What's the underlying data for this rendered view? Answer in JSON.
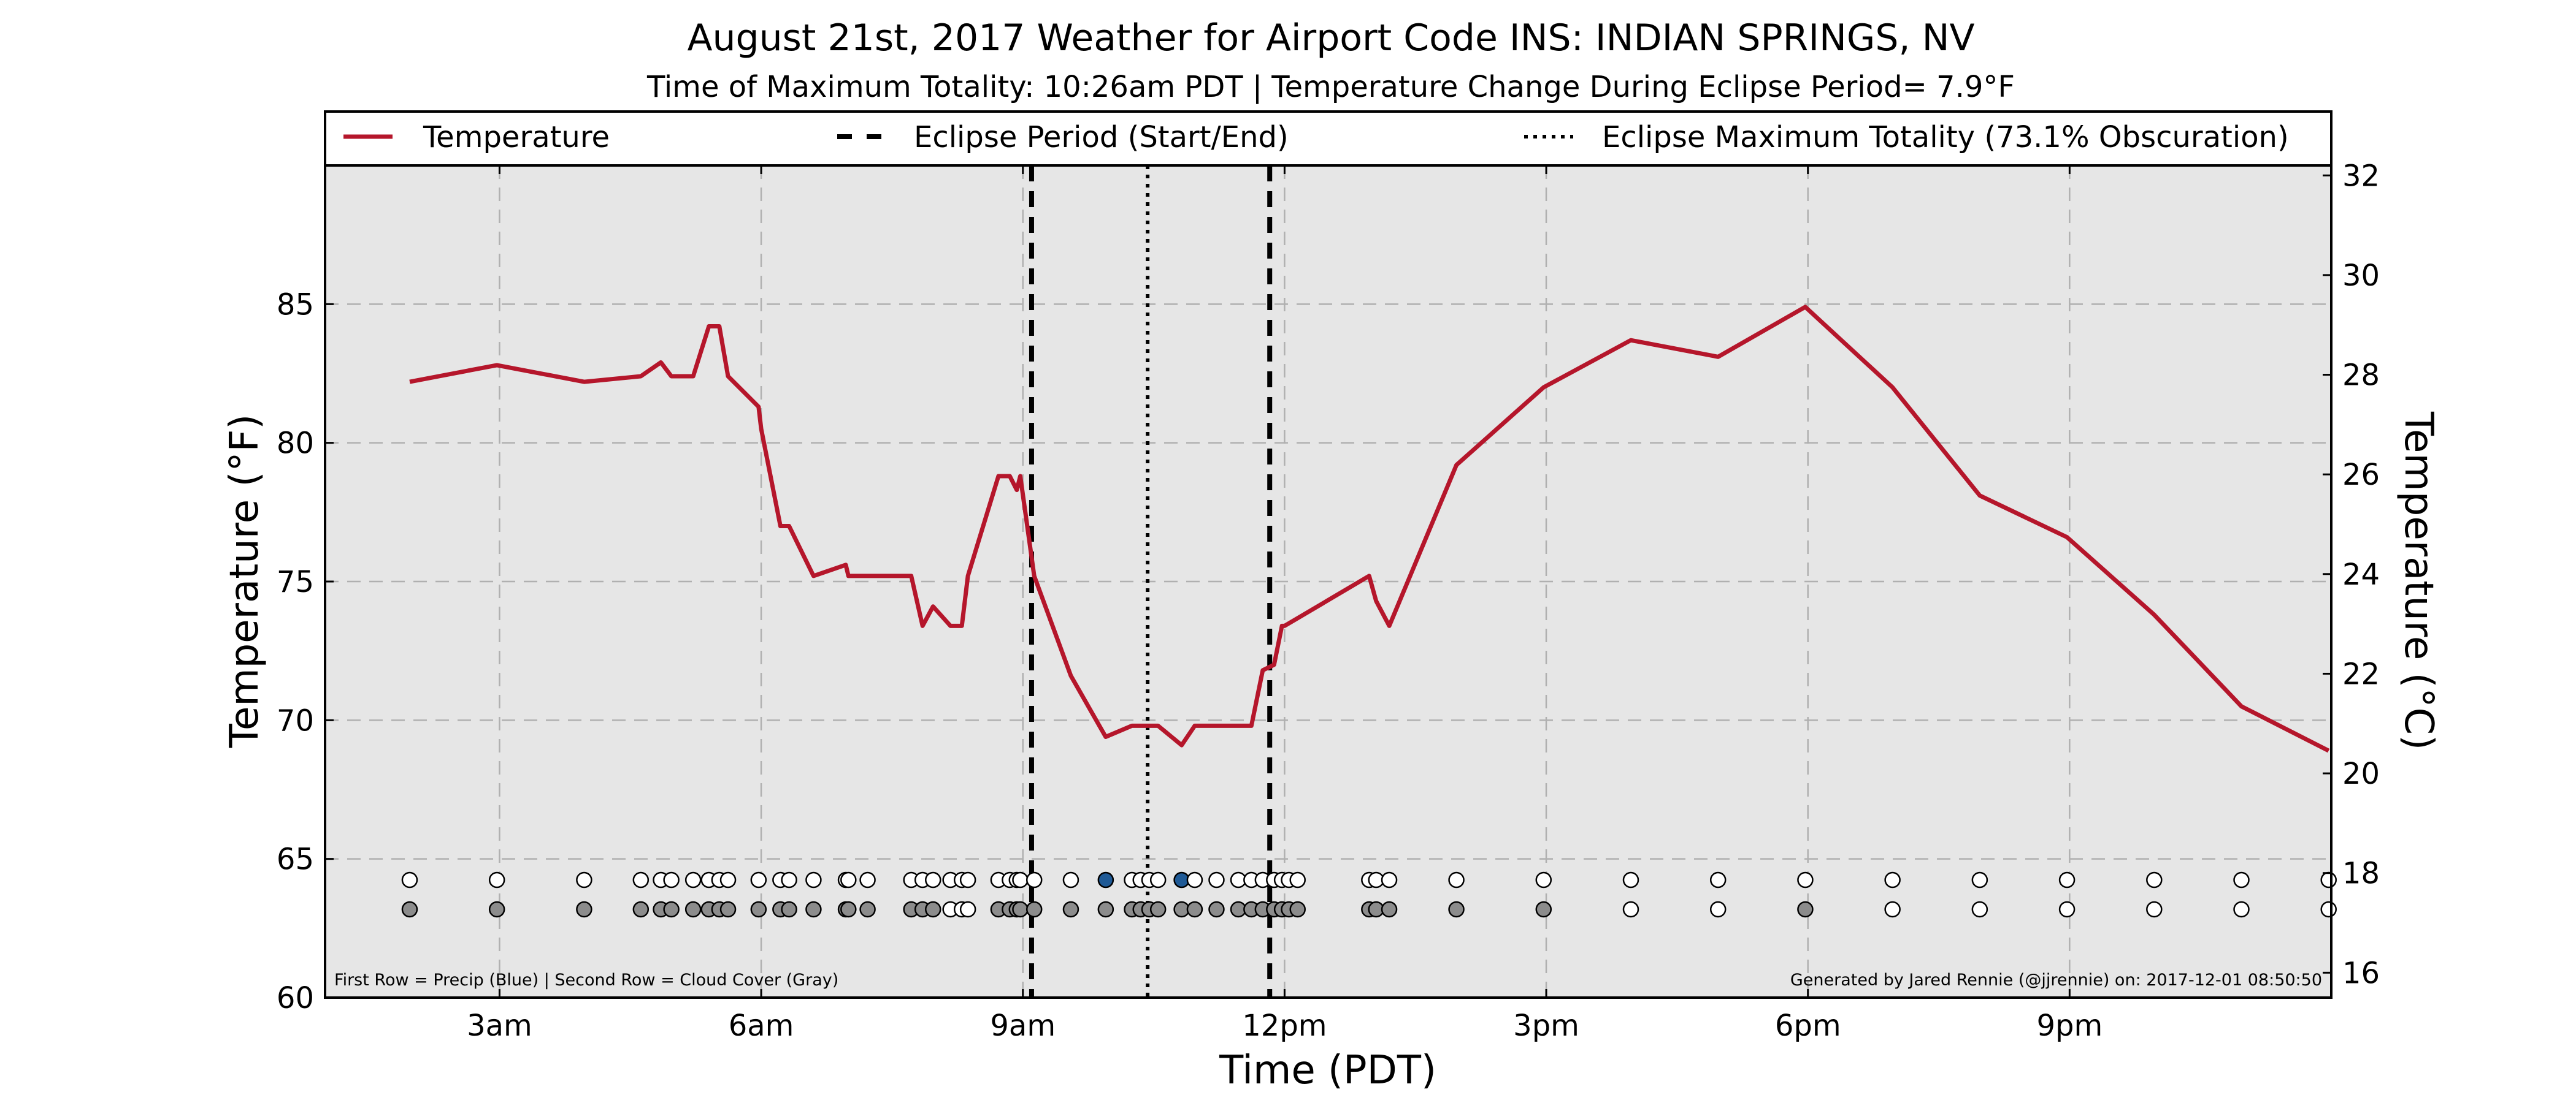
{
  "header": {
    "title": "August 21st, 2017 Weather for Airport Code INS: INDIAN SPRINGS, NV",
    "subtitle": "Time of Maximum Totality: 10:26am PDT | Temperature Change During Eclipse Period= 7.9°F"
  },
  "legend": {
    "position": "top",
    "items": [
      {
        "label": "Temperature",
        "style": "solid",
        "color": "#b5162b"
      },
      {
        "label": "Eclipse Period (Start/End)",
        "style": "dashed",
        "color": "#000000"
      },
      {
        "label": "Eclipse Maximum Totality (73.1% Obscuration)",
        "style": "dotted",
        "color": "#000000"
      }
    ]
  },
  "footnotes": {
    "left": "First Row = Precip (Blue) | Second Row = Cloud Cover (Gray)",
    "right": "Generated by Jared Rennie (@jjrennie) on: 2017-12-01 08:50:50"
  },
  "colors": {
    "temperature_line": "#b5162b",
    "plot_background": "#e6e6e6",
    "precip_marker": "#1f5a96",
    "cloud_marker": "#8c8c8c",
    "empty_marker": "#ffffff",
    "grid": "#b0b0b0"
  },
  "chart_data": {
    "type": "line",
    "title": "August 21st, 2017 Weather for Airport Code INS: INDIAN SPRINGS, NV",
    "xlabel": "Time (PDT)",
    "ylabel": "Temperature (°F)",
    "ylabel_right": "Temperature (°C)",
    "x_unit": "hours after midnight (PDT)",
    "xlim": [
      1.0,
      24.0
    ],
    "ylim": [
      60,
      90
    ],
    "ylim_right": [
      15.5,
      32.2
    ],
    "grid": true,
    "x_ticks": [
      {
        "value": 3,
        "label": "3am"
      },
      {
        "value": 6,
        "label": "6am"
      },
      {
        "value": 9,
        "label": "9am"
      },
      {
        "value": 12,
        "label": "12pm"
      },
      {
        "value": 15,
        "label": "3pm"
      },
      {
        "value": 18,
        "label": "6pm"
      },
      {
        "value": 21,
        "label": "9pm"
      }
    ],
    "y_ticks": [
      60,
      65,
      70,
      75,
      80,
      85
    ],
    "y_ticks_right": [
      16,
      18,
      20,
      22,
      24,
      26,
      28,
      30,
      32
    ],
    "eclipse_start": 9.1,
    "eclipse_end": 11.83,
    "eclipse_max": 10.43,
    "series": [
      {
        "name": "Temperature",
        "x": [
          1.97,
          2.97,
          3.97,
          4.62,
          4.85,
          4.97,
          5.22,
          5.4,
          5.52,
          5.62,
          5.97,
          6.0,
          6.22,
          6.32,
          6.6,
          6.97,
          7.0,
          7.72,
          7.85,
          7.97,
          8.17,
          8.3,
          8.37,
          8.72,
          8.85,
          8.93,
          8.97,
          9.13,
          9.55,
          9.95,
          10.25,
          10.5,
          10.55,
          10.82,
          10.97,
          11.22,
          11.47,
          11.62,
          11.75,
          11.88,
          11.97,
          12.0,
          12.97,
          13.05,
          13.2,
          13.97,
          14.97,
          15.97,
          16.97,
          17.97,
          18.97,
          19.97,
          20.97,
          21.97,
          22.97,
          23.97
        ],
        "y": [
          82.2,
          82.8,
          82.2,
          82.4,
          82.9,
          82.4,
          82.4,
          84.2,
          84.2,
          82.4,
          81.3,
          80.5,
          77.0,
          77.0,
          75.2,
          75.6,
          75.2,
          75.2,
          73.4,
          74.1,
          73.4,
          73.4,
          75.2,
          78.8,
          78.8,
          78.3,
          78.8,
          75.2,
          71.6,
          69.4,
          69.8,
          69.8,
          69.8,
          69.1,
          69.8,
          69.8,
          69.8,
          69.8,
          71.8,
          72.0,
          73.4,
          73.4,
          75.2,
          74.3,
          73.4,
          79.2,
          82.0,
          83.7,
          83.1,
          84.9,
          82.0,
          78.1,
          76.6,
          73.8,
          70.5,
          68.9
        ]
      },
      {
        "name": "Precip",
        "row": 1,
        "x": [
          1.97,
          2.97,
          3.97,
          4.62,
          4.85,
          4.97,
          5.22,
          5.4,
          5.52,
          5.62,
          5.97,
          6.22,
          6.32,
          6.6,
          6.97,
          7.0,
          7.22,
          7.72,
          7.85,
          7.97,
          8.17,
          8.3,
          8.37,
          8.72,
          8.85,
          8.93,
          8.97,
          9.13,
          9.55,
          9.95,
          10.25,
          10.35,
          10.45,
          10.55,
          10.82,
          10.97,
          11.22,
          11.47,
          11.62,
          11.75,
          11.88,
          11.97,
          12.05,
          12.15,
          12.97,
          13.05,
          13.2,
          13.97,
          14.97,
          15.97,
          16.97,
          17.97,
          18.97,
          19.97,
          20.97,
          21.97,
          22.97,
          23.97
        ],
        "values": [
          0,
          0,
          0,
          0,
          0,
          0,
          0,
          0,
          0,
          0,
          0,
          0,
          0,
          0,
          0,
          0,
          0,
          0,
          0,
          0,
          0,
          0,
          0,
          0,
          0,
          0,
          0,
          0,
          0,
          1,
          0,
          0,
          0,
          0,
          1,
          0,
          0,
          0,
          0,
          0,
          0,
          0,
          0,
          0,
          0,
          0,
          0,
          0,
          0,
          0,
          0,
          0,
          0,
          0,
          0,
          0,
          0,
          0
        ]
      },
      {
        "name": "Cloud Cover",
        "row": 2,
        "x": [
          1.97,
          2.97,
          3.97,
          4.62,
          4.85,
          4.97,
          5.22,
          5.4,
          5.52,
          5.62,
          5.97,
          6.22,
          6.32,
          6.6,
          6.97,
          7.0,
          7.22,
          7.72,
          7.85,
          7.97,
          8.17,
          8.3,
          8.37,
          8.72,
          8.85,
          8.93,
          8.97,
          9.13,
          9.55,
          9.95,
          10.25,
          10.35,
          10.45,
          10.55,
          10.82,
          10.97,
          11.22,
          11.47,
          11.62,
          11.75,
          11.88,
          11.97,
          12.05,
          12.15,
          12.97,
          13.05,
          13.2,
          13.97,
          14.97,
          15.97,
          16.97,
          17.97,
          18.97,
          19.97,
          20.97,
          21.97,
          22.97,
          23.97
        ],
        "values": [
          1,
          1,
          1,
          1,
          1,
          1,
          1,
          1,
          1,
          1,
          1,
          1,
          1,
          1,
          1,
          1,
          1,
          1,
          1,
          1,
          0,
          0,
          0,
          1,
          1,
          1,
          1,
          1,
          1,
          1,
          1,
          1,
          1,
          1,
          1,
          1,
          1,
          1,
          1,
          1,
          1,
          1,
          1,
          1,
          1,
          1,
          1,
          1,
          1,
          0,
          0,
          1,
          0,
          0,
          0,
          0,
          0,
          0
        ]
      }
    ]
  }
}
